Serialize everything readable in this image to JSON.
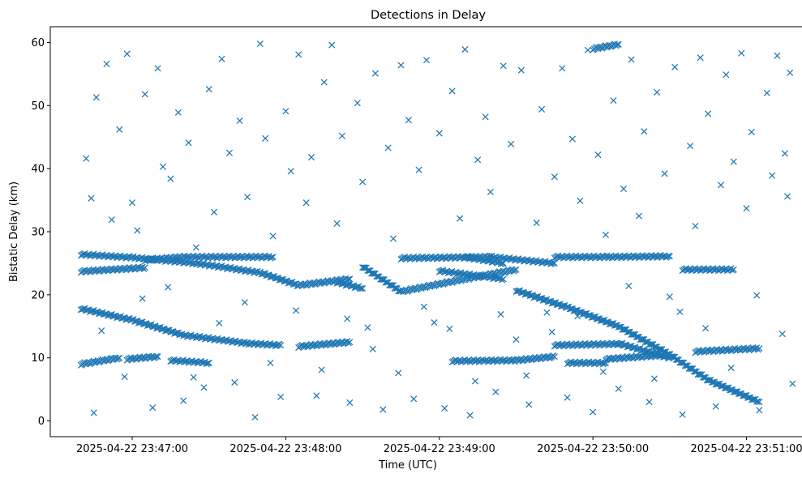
{
  "chart_data": {
    "type": "scatter",
    "title": "Detections in Delay",
    "xlabel": "Time (UTC)",
    "ylabel": "Bistatic Delay (km)",
    "marker": "x",
    "color": "#1f77b4",
    "grid": false,
    "legend": "none",
    "xlim": [
      "2025-04-22 23:46:28",
      "2025-04-22 23:51:22"
    ],
    "ylim": [
      -2.5,
      62.5
    ],
    "x_ticks": [
      {
        "value": "2025-04-22 23:47:00",
        "label": "2025-04-22 23:47:00"
      },
      {
        "value": "2025-04-22 23:48:00",
        "label": "2025-04-22 23:48:00"
      },
      {
        "value": "2025-04-22 23:49:00",
        "label": "2025-04-22 23:49:00"
      },
      {
        "value": "2025-04-22 23:50:00",
        "label": "2025-04-22 23:50:00"
      },
      {
        "value": "2025-04-22 23:51:00",
        "label": "2025-04-22 23:51:00"
      }
    ],
    "y_ticks": [
      0,
      10,
      20,
      30,
      40,
      50,
      60
    ],
    "tracks": [
      {
        "points": [
          [
            "2025-04-22 23:46:40",
            17.8
          ],
          [
            "2025-04-22 23:47:00",
            16.0
          ],
          [
            "2025-04-22 23:47:20",
            13.6
          ],
          [
            "2025-04-22 23:47:45",
            12.3
          ],
          [
            "2025-04-22 23:47:58",
            12.0
          ]
        ]
      },
      {
        "points": [
          [
            "2025-04-22 23:48:05",
            11.8
          ],
          [
            "2025-04-22 23:48:25",
            12.5
          ]
        ]
      },
      {
        "points": [
          [
            "2025-04-22 23:46:40",
            26.4
          ],
          [
            "2025-04-22 23:47:00",
            25.9
          ],
          [
            "2025-04-22 23:47:25",
            25.0
          ],
          [
            "2025-04-22 23:47:50",
            23.5
          ],
          [
            "2025-04-22 23:48:05",
            21.5
          ],
          [
            "2025-04-22 23:48:25",
            22.5
          ]
        ]
      },
      {
        "points": [
          [
            "2025-04-22 23:46:40",
            23.7
          ],
          [
            "2025-04-22 23:47:05",
            24.3
          ]
        ]
      },
      {
        "points": [
          [
            "2025-04-22 23:47:05",
            25.5
          ],
          [
            "2025-04-22 23:47:20",
            26.0
          ],
          [
            "2025-04-22 23:47:55",
            26.0
          ]
        ]
      },
      {
        "points": [
          [
            "2025-04-22 23:46:40",
            9.0
          ],
          [
            "2025-04-22 23:46:55",
            10.0
          ]
        ]
      },
      {
        "points": [
          [
            "2025-04-22 23:46:58",
            9.8
          ],
          [
            "2025-04-22 23:47:10",
            10.2
          ]
        ]
      },
      {
        "points": [
          [
            "2025-04-22 23:47:15",
            9.6
          ],
          [
            "2025-04-22 23:47:30",
            9.2
          ]
        ]
      },
      {
        "points": [
          [
            "2025-04-22 23:48:30",
            24.5
          ],
          [
            "2025-04-22 23:48:45",
            20.5
          ],
          [
            "2025-04-22 23:49:10",
            22.5
          ],
          [
            "2025-04-22 23:49:30",
            24.0
          ]
        ]
      },
      {
        "points": [
          [
            "2025-04-22 23:48:45",
            25.8
          ],
          [
            "2025-04-22 23:49:20",
            26.0
          ],
          [
            "2025-04-22 23:49:45",
            25.0
          ]
        ]
      },
      {
        "points": [
          [
            "2025-04-22 23:49:00",
            23.8
          ],
          [
            "2025-04-22 23:49:25",
            22.5
          ]
        ]
      },
      {
        "points": [
          [
            "2025-04-22 23:48:20",
            22.0
          ],
          [
            "2025-04-22 23:48:30",
            21.0
          ]
        ]
      },
      {
        "points": [
          [
            "2025-04-22 23:49:05",
            9.5
          ],
          [
            "2025-04-22 23:49:30",
            9.6
          ],
          [
            "2025-04-22 23:49:45",
            10.2
          ]
        ]
      },
      {
        "points": [
          [
            "2025-04-22 23:49:30",
            20.7
          ],
          [
            "2025-04-22 23:49:50",
            18.0
          ],
          [
            "2025-04-22 23:50:10",
            15.0
          ],
          [
            "2025-04-22 23:50:30",
            10.5
          ],
          [
            "2025-04-22 23:50:45",
            6.5
          ],
          [
            "2025-04-22 23:51:05",
            3.0
          ]
        ]
      },
      {
        "points": [
          [
            "2025-04-22 23:49:45",
            12.0
          ],
          [
            "2025-04-22 23:50:10",
            12.2
          ]
        ]
      },
      {
        "points": [
          [
            "2025-04-22 23:50:10",
            12.3
          ],
          [
            "2025-04-22 23:50:30",
            10.0
          ]
        ]
      },
      {
        "points": [
          [
            "2025-04-22 23:49:50",
            9.2
          ],
          [
            "2025-04-22 23:50:05",
            9.2
          ]
        ]
      },
      {
        "points": [
          [
            "2025-04-22 23:50:05",
            9.8
          ],
          [
            "2025-04-22 23:50:30",
            10.5
          ]
        ]
      },
      {
        "points": [
          [
            "2025-04-22 23:49:45",
            26.0
          ],
          [
            "2025-04-22 23:50:05",
            26.0
          ],
          [
            "2025-04-22 23:50:30",
            26.1
          ]
        ]
      },
      {
        "points": [
          [
            "2025-04-22 23:50:35",
            24.0
          ],
          [
            "2025-04-22 23:50:55",
            24.0
          ]
        ]
      },
      {
        "points": [
          [
            "2025-04-22 23:50:40",
            11.0
          ],
          [
            "2025-04-22 23:51:05",
            11.5
          ]
        ]
      },
      {
        "points": [
          [
            "2025-04-22 23:50:00",
            59.0
          ],
          [
            "2025-04-22 23:50:10",
            59.7
          ]
        ]
      },
      {
        "points": [
          [
            "2025-04-22 23:49:10",
            26.0
          ],
          [
            "2025-04-22 23:49:25",
            25.0
          ]
        ]
      }
    ],
    "scatter_points": [
      [
        "2025-04-22 23:46:45",
        1.3
      ],
      [
        "2025-04-22 23:46:50",
        56.6
      ],
      [
        "2025-04-22 23:46:55",
        46.2
      ],
      [
        "2025-04-22 23:46:58",
        58.2
      ],
      [
        "2025-04-22 23:47:00",
        34.6
      ],
      [
        "2025-04-22 23:47:02",
        30.2
      ],
      [
        "2025-04-22 23:47:05",
        51.8
      ],
      [
        "2025-04-22 23:47:08",
        2.1
      ],
      [
        "2025-04-22 23:47:10",
        55.9
      ],
      [
        "2025-04-22 23:47:12",
        40.3
      ],
      [
        "2025-04-22 23:47:15",
        38.4
      ],
      [
        "2025-04-22 23:47:18",
        48.9
      ],
      [
        "2025-04-22 23:47:20",
        3.2
      ],
      [
        "2025-04-22 23:47:22",
        44.1
      ],
      [
        "2025-04-22 23:47:25",
        27.5
      ],
      [
        "2025-04-22 23:47:28",
        5.3
      ],
      [
        "2025-04-22 23:47:30",
        52.6
      ],
      [
        "2025-04-22 23:47:32",
        33.1
      ],
      [
        "2025-04-22 23:47:35",
        57.4
      ],
      [
        "2025-04-22 23:47:38",
        42.5
      ],
      [
        "2025-04-22 23:47:40",
        6.1
      ],
      [
        "2025-04-22 23:47:42",
        47.6
      ],
      [
        "2025-04-22 23:47:45",
        35.5
      ],
      [
        "2025-04-22 23:47:48",
        0.6
      ],
      [
        "2025-04-22 23:47:50",
        59.8
      ],
      [
        "2025-04-22 23:47:52",
        44.8
      ],
      [
        "2025-04-22 23:47:55",
        29.3
      ],
      [
        "2025-04-22 23:47:58",
        3.8
      ],
      [
        "2025-04-22 23:48:00",
        49.1
      ],
      [
        "2025-04-22 23:48:02",
        39.6
      ],
      [
        "2025-04-22 23:48:05",
        58.1
      ],
      [
        "2025-04-22 23:48:08",
        34.6
      ],
      [
        "2025-04-22 23:48:10",
        41.8
      ],
      [
        "2025-04-22 23:48:12",
        4.0
      ],
      [
        "2025-04-22 23:48:15",
        53.7
      ],
      [
        "2025-04-22 23:48:18",
        59.6
      ],
      [
        "2025-04-22 23:48:20",
        31.3
      ],
      [
        "2025-04-22 23:48:22",
        45.2
      ],
      [
        "2025-04-22 23:48:25",
        2.9
      ],
      [
        "2025-04-22 23:48:28",
        50.4
      ],
      [
        "2025-04-22 23:48:30",
        37.9
      ],
      [
        "2025-04-22 23:48:32",
        14.8
      ],
      [
        "2025-04-22 23:48:35",
        55.1
      ],
      [
        "2025-04-22 23:48:38",
        1.8
      ],
      [
        "2025-04-22 23:48:40",
        43.3
      ],
      [
        "2025-04-22 23:48:42",
        28.9
      ],
      [
        "2025-04-22 23:48:45",
        56.4
      ],
      [
        "2025-04-22 23:48:48",
        47.7
      ],
      [
        "2025-04-22 23:48:50",
        3.5
      ],
      [
        "2025-04-22 23:48:52",
        39.8
      ],
      [
        "2025-04-22 23:48:55",
        57.2
      ],
      [
        "2025-04-22 23:48:58",
        15.6
      ],
      [
        "2025-04-22 23:49:00",
        45.6
      ],
      [
        "2025-04-22 23:49:02",
        2.0
      ],
      [
        "2025-04-22 23:49:05",
        52.3
      ],
      [
        "2025-04-22 23:49:08",
        32.1
      ],
      [
        "2025-04-22 23:49:10",
        58.9
      ],
      [
        "2025-04-22 23:49:12",
        0.9
      ],
      [
        "2025-04-22 23:49:15",
        41.4
      ],
      [
        "2025-04-22 23:49:18",
        48.2
      ],
      [
        "2025-04-22 23:49:20",
        36.3
      ],
      [
        "2025-04-22 23:49:22",
        4.6
      ],
      [
        "2025-04-22 23:49:25",
        56.3
      ],
      [
        "2025-04-22 23:49:28",
        43.9
      ],
      [
        "2025-04-22 23:49:30",
        12.9
      ],
      [
        "2025-04-22 23:49:32",
        55.6
      ],
      [
        "2025-04-22 23:49:35",
        2.6
      ],
      [
        "2025-04-22 23:49:38",
        31.4
      ],
      [
        "2025-04-22 23:49:40",
        49.4
      ],
      [
        "2025-04-22 23:49:42",
        17.2
      ],
      [
        "2025-04-22 23:49:45",
        38.7
      ],
      [
        "2025-04-22 23:49:48",
        55.9
      ],
      [
        "2025-04-22 23:49:50",
        3.7
      ],
      [
        "2025-04-22 23:49:52",
        44.7
      ],
      [
        "2025-04-22 23:49:55",
        34.9
      ],
      [
        "2025-04-22 23:49:58",
        58.8
      ],
      [
        "2025-04-22 23:50:00",
        1.4
      ],
      [
        "2025-04-22 23:50:02",
        42.2
      ],
      [
        "2025-04-22 23:50:05",
        29.5
      ],
      [
        "2025-04-22 23:50:08",
        50.8
      ],
      [
        "2025-04-22 23:50:10",
        5.1
      ],
      [
        "2025-04-22 23:50:12",
        36.8
      ],
      [
        "2025-04-22 23:50:15",
        57.3
      ],
      [
        "2025-04-22 23:50:18",
        32.5
      ],
      [
        "2025-04-22 23:50:20",
        45.9
      ],
      [
        "2025-04-22 23:50:22",
        3.0
      ],
      [
        "2025-04-22 23:50:25",
        52.1
      ],
      [
        "2025-04-22 23:50:28",
        39.2
      ],
      [
        "2025-04-22 23:50:30",
        19.7
      ],
      [
        "2025-04-22 23:50:32",
        56.1
      ],
      [
        "2025-04-22 23:50:35",
        1.0
      ],
      [
        "2025-04-22 23:50:38",
        43.6
      ],
      [
        "2025-04-22 23:50:40",
        30.9
      ],
      [
        "2025-04-22 23:50:42",
        57.6
      ],
      [
        "2025-04-22 23:50:45",
        48.7
      ],
      [
        "2025-04-22 23:50:48",
        2.3
      ],
      [
        "2025-04-22 23:50:50",
        37.4
      ],
      [
        "2025-04-22 23:50:52",
        54.9
      ],
      [
        "2025-04-22 23:50:55",
        41.1
      ],
      [
        "2025-04-22 23:50:58",
        58.3
      ],
      [
        "2025-04-22 23:51:00",
        33.7
      ],
      [
        "2025-04-22 23:51:02",
        45.8
      ],
      [
        "2025-04-22 23:51:05",
        1.7
      ],
      [
        "2025-04-22 23:51:08",
        52.0
      ],
      [
        "2025-04-22 23:51:10",
        38.9
      ],
      [
        "2025-04-22 23:51:12",
        57.9
      ],
      [
        "2025-04-22 23:51:15",
        42.4
      ],
      [
        "2025-04-22 23:51:16",
        35.6
      ],
      [
        "2025-04-22 23:51:17",
        55.2
      ],
      [
        "2025-04-22 23:51:18",
        5.9
      ],
      [
        "2025-04-22 23:46:42",
        41.6
      ],
      [
        "2025-04-22 23:46:44",
        35.3
      ],
      [
        "2025-04-22 23:46:46",
        51.3
      ],
      [
        "2025-04-22 23:46:48",
        14.3
      ],
      [
        "2025-04-22 23:46:52",
        31.9
      ],
      [
        "2025-04-22 23:46:57",
        7.0
      ],
      [
        "2025-04-22 23:47:04",
        19.4
      ],
      [
        "2025-04-22 23:47:14",
        21.2
      ],
      [
        "2025-04-22 23:47:24",
        6.9
      ],
      [
        "2025-04-22 23:47:34",
        15.5
      ],
      [
        "2025-04-22 23:47:44",
        18.8
      ],
      [
        "2025-04-22 23:47:54",
        9.2
      ],
      [
        "2025-04-22 23:48:04",
        17.5
      ],
      [
        "2025-04-22 23:48:14",
        8.1
      ],
      [
        "2025-04-22 23:48:24",
        16.2
      ],
      [
        "2025-04-22 23:48:34",
        11.4
      ],
      [
        "2025-04-22 23:48:44",
        7.6
      ],
      [
        "2025-04-22 23:48:54",
        18.1
      ],
      [
        "2025-04-22 23:49:04",
        14.6
      ],
      [
        "2025-04-22 23:49:14",
        6.3
      ],
      [
        "2025-04-22 23:49:24",
        16.9
      ],
      [
        "2025-04-22 23:49:34",
        7.2
      ],
      [
        "2025-04-22 23:49:44",
        14.1
      ],
      [
        "2025-04-22 23:49:54",
        16.6
      ],
      [
        "2025-04-22 23:50:04",
        7.8
      ],
      [
        "2025-04-22 23:50:14",
        21.4
      ],
      [
        "2025-04-22 23:50:24",
        6.7
      ],
      [
        "2025-04-22 23:50:34",
        17.3
      ],
      [
        "2025-04-22 23:50:44",
        14.7
      ],
      [
        "2025-04-22 23:50:54",
        8.4
      ],
      [
        "2025-04-22 23:51:04",
        19.9
      ],
      [
        "2025-04-22 23:51:14",
        13.8
      ]
    ]
  }
}
